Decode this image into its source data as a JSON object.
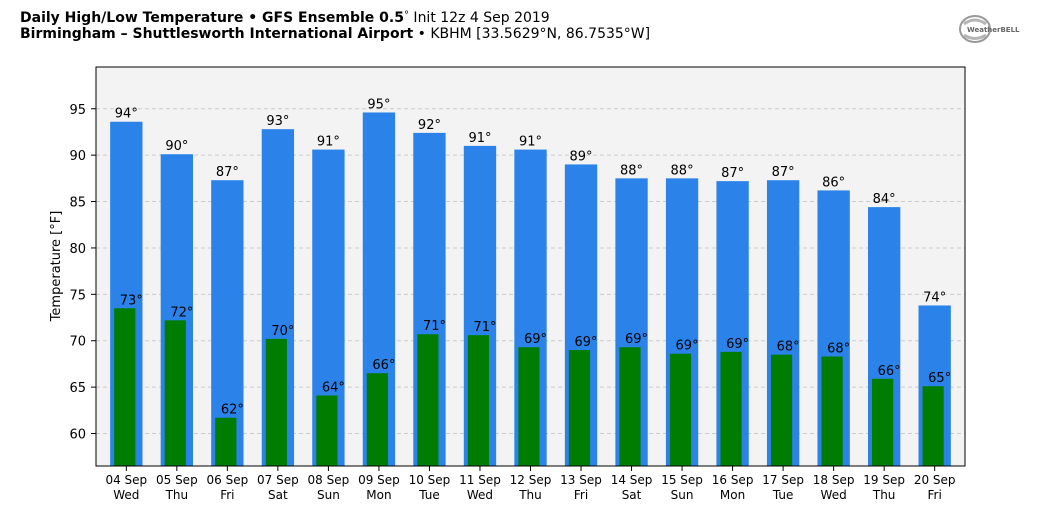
{
  "header": {
    "title_bold": "Daily High/Low Temperature • GFS Ensemble 0.5",
    "title_deg": "°",
    "title_rest": " Init 12z 4 Sep 2019",
    "location_bold": "Birmingham – Shuttlesworth International Airport",
    "location_rest": " • KBHM [33.5629°N, 86.7535°W]"
  },
  "logo": {
    "text": "WeatherBELL"
  },
  "colors": {
    "high": "#2b83ea",
    "low": "#007d00",
    "plot_bg": "#f3f3f3"
  },
  "chart_data": {
    "type": "bar",
    "ylabel": "Temperature [°F]",
    "ylim": [
      56.5,
      99.5
    ],
    "yticks": [
      60,
      65,
      70,
      75,
      80,
      85,
      90,
      95
    ],
    "grid": true,
    "categories": [
      [
        "04 Sep",
        "Wed"
      ],
      [
        "05 Sep",
        "Thu"
      ],
      [
        "06 Sep",
        "Fri"
      ],
      [
        "07 Sep",
        "Sat"
      ],
      [
        "08 Sep",
        "Sun"
      ],
      [
        "09 Sep",
        "Mon"
      ],
      [
        "10 Sep",
        "Tue"
      ],
      [
        "11 Sep",
        "Wed"
      ],
      [
        "12 Sep",
        "Thu"
      ],
      [
        "13 Sep",
        "Fri"
      ],
      [
        "14 Sep",
        "Sat"
      ],
      [
        "15 Sep",
        "Sun"
      ],
      [
        "16 Sep",
        "Mon"
      ],
      [
        "17 Sep",
        "Tue"
      ],
      [
        "18 Sep",
        "Wed"
      ],
      [
        "19 Sep",
        "Thu"
      ],
      [
        "20 Sep",
        "Fri"
      ]
    ],
    "series": [
      {
        "key": "high",
        "values": [
          93.6,
          90.1,
          87.3,
          92.8,
          90.6,
          94.6,
          92.4,
          91.0,
          90.6,
          89.0,
          87.5,
          87.5,
          87.2,
          87.3,
          86.2,
          84.4,
          73.8
        ],
        "labels": [
          "94°",
          "90°",
          "87°",
          "93°",
          "91°",
          "95°",
          "92°",
          "91°",
          "91°",
          "89°",
          "88°",
          "88°",
          "87°",
          "87°",
          "86°",
          "84°",
          "74°"
        ]
      },
      {
        "key": "low",
        "values": [
          73.5,
          72.2,
          61.7,
          70.2,
          64.1,
          66.5,
          70.7,
          70.6,
          69.3,
          69.0,
          69.3,
          68.6,
          68.8,
          68.5,
          68.3,
          65.9,
          65.1
        ],
        "labels": [
          "73°",
          "72°",
          "62°",
          "70°",
          "64°",
          "66°",
          "71°",
          "71°",
          "69°",
          "69°",
          "69°",
          "69°",
          "69°",
          "68°",
          "68°",
          "66°",
          "65°"
        ]
      }
    ]
  }
}
